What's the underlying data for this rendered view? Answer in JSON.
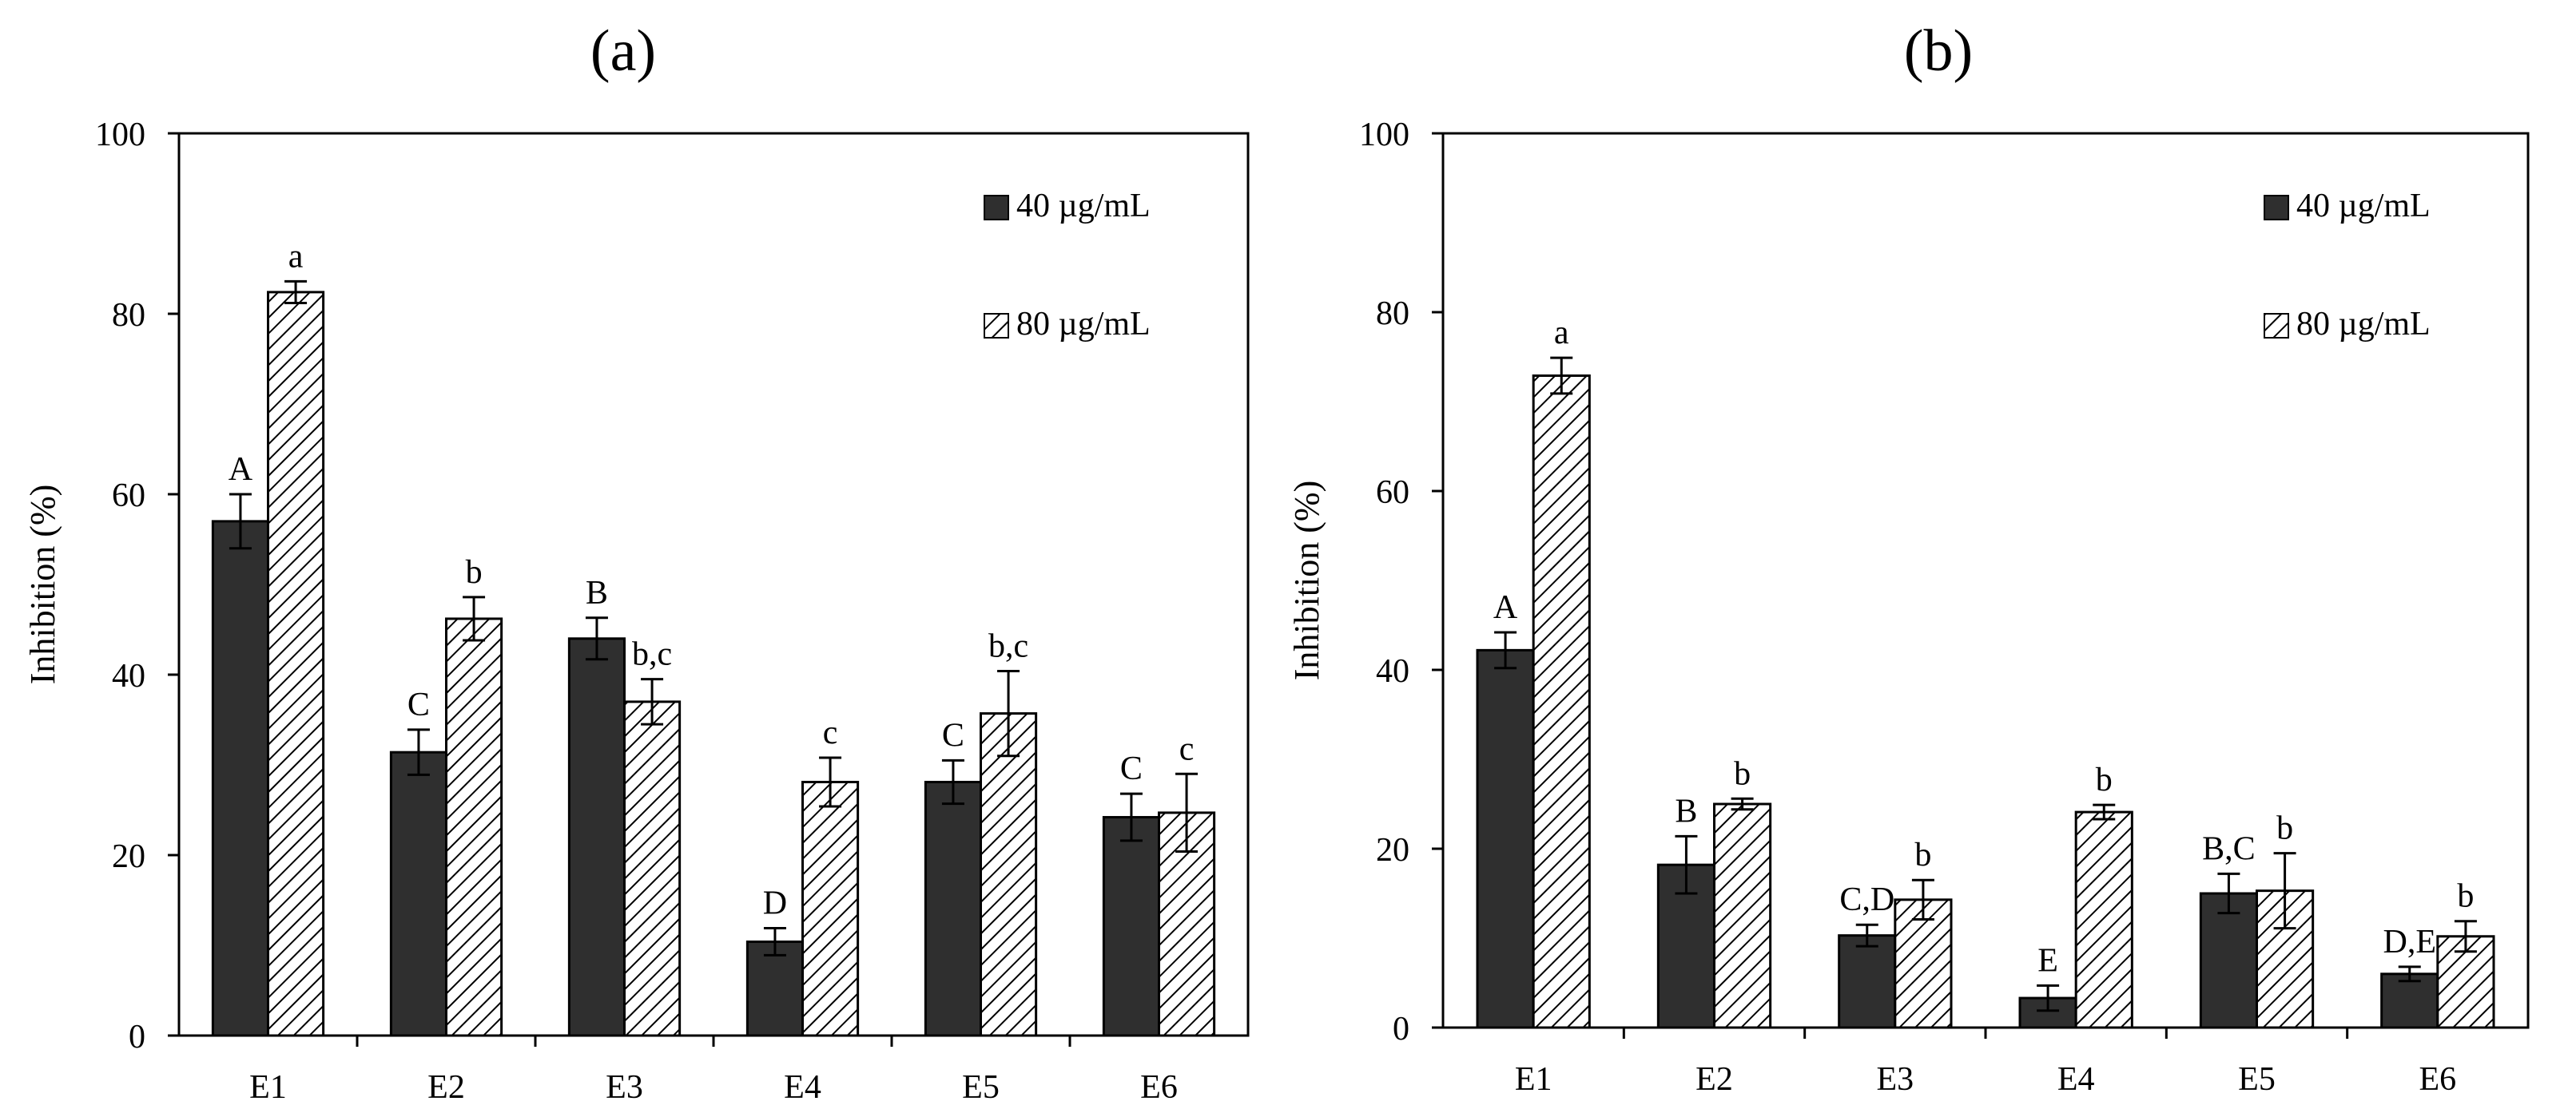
{
  "colors": {
    "dark_bar": "#2f2f2f",
    "hatch_line": "#000000",
    "axis": "#000000",
    "background": "#ffffff"
  },
  "chart_data": [
    {
      "type": "bar",
      "panel_label": "(a)",
      "ylabel": "Inhibition (%)",
      "xlabel": "",
      "ylim": [
        0,
        100
      ],
      "yticks": [
        "0",
        "20",
        "40",
        "60",
        "80",
        "100"
      ],
      "grid": false,
      "legend_position": "top-right",
      "categories": [
        "E1",
        "E2",
        "E3",
        "E4",
        "E5",
        "E6"
      ],
      "series": [
        {
          "name": "40 µg/mL",
          "style": "solid-dark",
          "values": [
            57,
            31.4,
            44,
            10.4,
            28.1,
            24.2
          ],
          "errors": [
            3,
            2.5,
            2.3,
            1.5,
            2.4,
            2.6
          ],
          "letters": [
            "A",
            "C",
            "B",
            "D",
            "C",
            "C"
          ]
        },
        {
          "name": "80 µg/mL",
          "style": "hatched",
          "values": [
            82.4,
            46.2,
            37,
            28.1,
            35.7,
            24.7
          ],
          "errors": [
            1.2,
            2.4,
            2.5,
            2.7,
            4.7,
            4.3
          ],
          "letters": [
            "a",
            "b",
            "b,c",
            "c",
            "b,c",
            "c"
          ]
        }
      ]
    },
    {
      "type": "bar",
      "panel_label": "(b)",
      "ylabel": "Inhibition (%)",
      "xlabel": "",
      "ylim": [
        0,
        100
      ],
      "yticks": [
        "0",
        "20",
        "40",
        "60",
        "80",
        "100"
      ],
      "grid": false,
      "legend_position": "top-right",
      "categories": [
        "E1",
        "E2",
        "E3",
        "E4",
        "E5",
        "E6"
      ],
      "series": [
        {
          "name": "40 µg/mL",
          "style": "solid-dark",
          "values": [
            42.2,
            18.2,
            10.3,
            3.3,
            15,
            6
          ],
          "errors": [
            2,
            3.2,
            1.2,
            1.4,
            2.2,
            0.8
          ],
          "letters": [
            "A",
            "B",
            "C,D",
            "E",
            "B,C",
            "D,E"
          ]
        },
        {
          "name": "80 µg/mL",
          "style": "hatched",
          "values": [
            72.9,
            25,
            14.3,
            24.1,
            15.3,
            10.2
          ],
          "errors": [
            2,
            0.6,
            2.2,
            0.8,
            4.2,
            1.7
          ],
          "letters": [
            "a",
            "b",
            "b",
            "b",
            "b",
            "b"
          ]
        }
      ]
    }
  ]
}
